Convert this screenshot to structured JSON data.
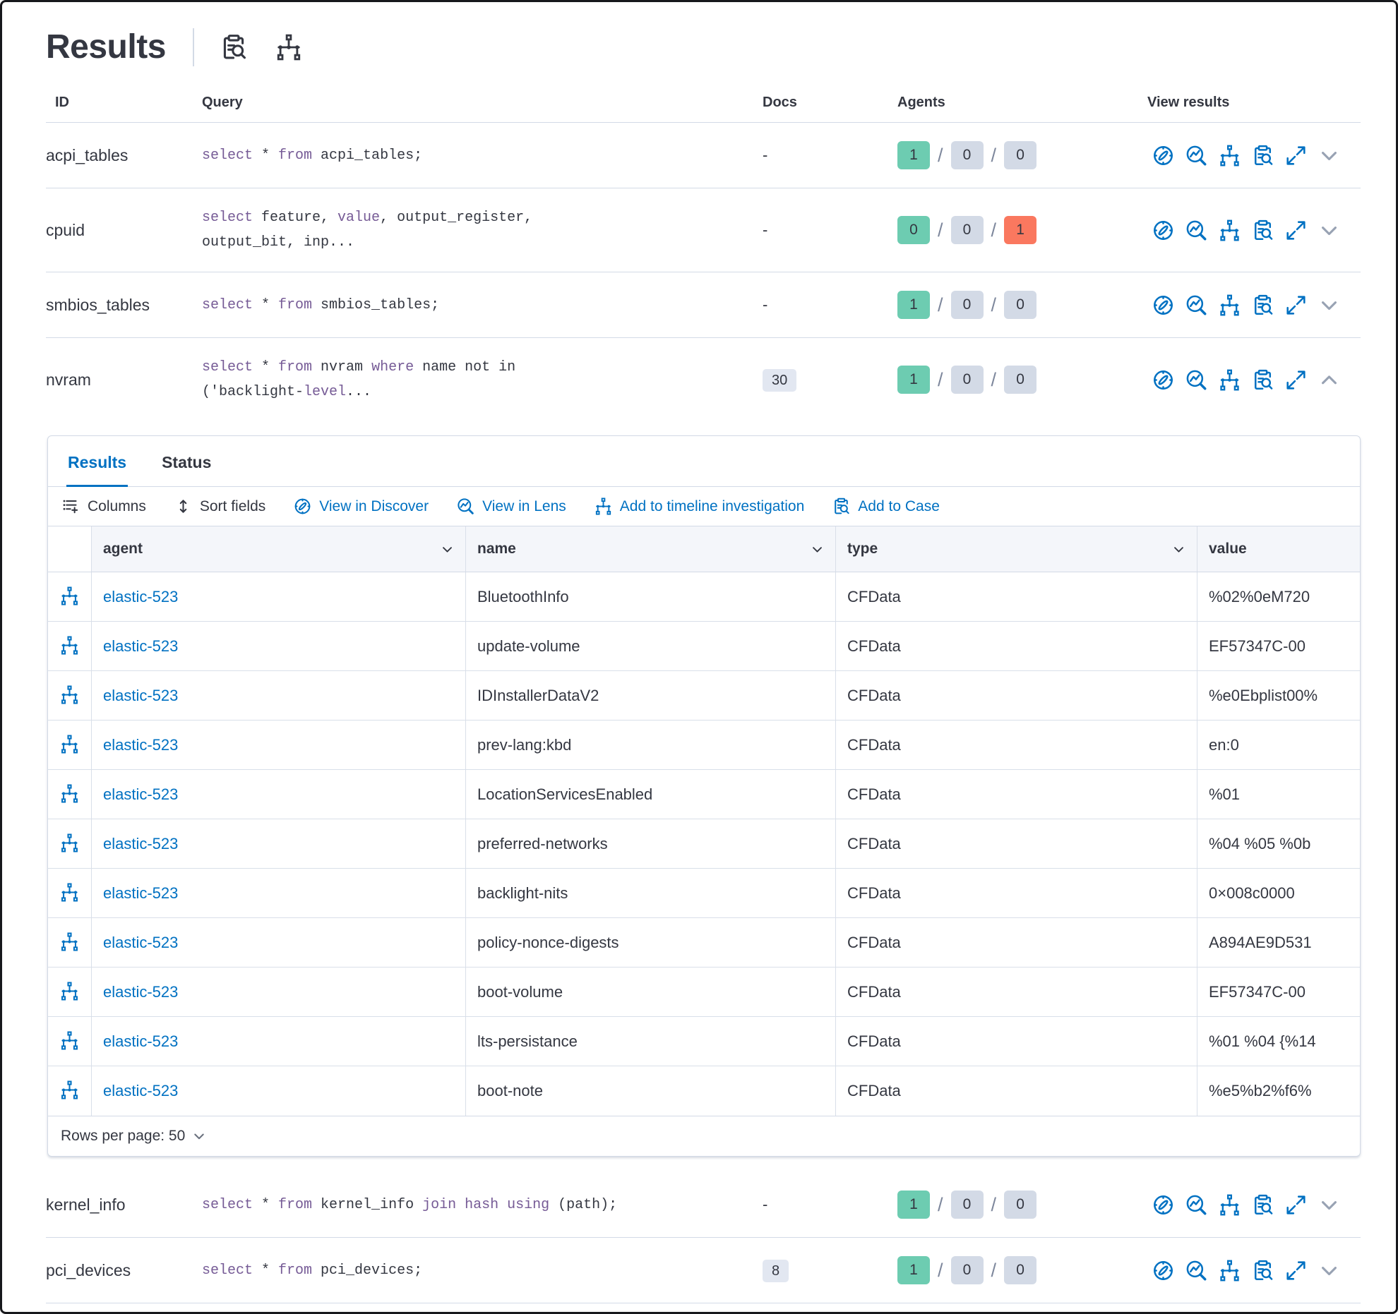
{
  "page": {
    "title": "Results"
  },
  "colors": {
    "accent": "#0071c2",
    "success_badge": "#6dccb1",
    "neutral_badge": "#d3dae6",
    "danger_badge": "#fa785f",
    "keyword": "#765b96",
    "border": "#d3dae6",
    "text": "#343741"
  },
  "results_table": {
    "columns": {
      "id": "ID",
      "query": "Query",
      "docs": "Docs",
      "agents": "Agents",
      "view": "View results"
    },
    "rows": [
      {
        "id": "acpi_tables",
        "docs": "-",
        "docs_badge": false,
        "expanded": false,
        "query": [
          [
            {
              "t": "select",
              "k": true
            },
            {
              "t": " * ",
              "k": false
            },
            {
              "t": "from",
              "k": true
            },
            {
              "t": " acpi_tables;",
              "k": false
            }
          ]
        ],
        "agents": [
          {
            "value": "1",
            "color": "green"
          },
          {
            "value": "0",
            "color": "gray"
          },
          {
            "value": "0",
            "color": "gray"
          }
        ]
      },
      {
        "id": "cpuid",
        "docs": "-",
        "docs_badge": false,
        "expanded": false,
        "query": [
          [
            {
              "t": "select",
              "k": true
            },
            {
              "t": " feature, ",
              "k": false
            },
            {
              "t": "value",
              "k": true
            },
            {
              "t": ", output_register,",
              "k": false
            }
          ],
          [
            {
              "t": "output_bit, inp...",
              "k": false
            }
          ]
        ],
        "agents": [
          {
            "value": "0",
            "color": "green"
          },
          {
            "value": "0",
            "color": "gray"
          },
          {
            "value": "1",
            "color": "red"
          }
        ]
      },
      {
        "id": "smbios_tables",
        "docs": "-",
        "docs_badge": false,
        "expanded": false,
        "query": [
          [
            {
              "t": "select",
              "k": true
            },
            {
              "t": " * ",
              "k": false
            },
            {
              "t": "from",
              "k": true
            },
            {
              "t": " smbios_tables;",
              "k": false
            }
          ]
        ],
        "agents": [
          {
            "value": "1",
            "color": "green"
          },
          {
            "value": "0",
            "color": "gray"
          },
          {
            "value": "0",
            "color": "gray"
          }
        ]
      },
      {
        "id": "nvram",
        "docs": "30",
        "docs_badge": true,
        "expanded": true,
        "query": [
          [
            {
              "t": "select",
              "k": true
            },
            {
              "t": " * ",
              "k": false
            },
            {
              "t": "from",
              "k": true
            },
            {
              "t": " nvram ",
              "k": false
            },
            {
              "t": "where",
              "k": true
            },
            {
              "t": " name not in",
              "k": false
            }
          ],
          [
            {
              "t": "('backlight-",
              "k": false
            },
            {
              "t": "level",
              "k": true
            },
            {
              "t": "...",
              "k": false
            }
          ]
        ],
        "agents": [
          {
            "value": "1",
            "color": "green"
          },
          {
            "value": "0",
            "color": "gray"
          },
          {
            "value": "0",
            "color": "gray"
          }
        ]
      },
      {
        "id": "kernel_info",
        "docs": "-",
        "docs_badge": false,
        "expanded": false,
        "query": [
          [
            {
              "t": "select",
              "k": true
            },
            {
              "t": " * ",
              "k": false
            },
            {
              "t": "from",
              "k": true
            },
            {
              "t": " kernel_info ",
              "k": false
            },
            {
              "t": "join",
              "k": true
            },
            {
              "t": " ",
              "k": false
            },
            {
              "t": "hash",
              "k": true
            },
            {
              "t": " ",
              "k": false
            },
            {
              "t": "using",
              "k": true
            },
            {
              "t": " (path);",
              "k": false
            }
          ]
        ],
        "agents": [
          {
            "value": "1",
            "color": "green"
          },
          {
            "value": "0",
            "color": "gray"
          },
          {
            "value": "0",
            "color": "gray"
          }
        ]
      },
      {
        "id": "pci_devices",
        "docs": "8",
        "docs_badge": true,
        "expanded": false,
        "query": [
          [
            {
              "t": "select",
              "k": true
            },
            {
              "t": " * ",
              "k": false
            },
            {
              "t": "from",
              "k": true
            },
            {
              "t": " pci_devices;",
              "k": false
            }
          ]
        ],
        "agents": [
          {
            "value": "1",
            "color": "green"
          },
          {
            "value": "0",
            "color": "gray"
          },
          {
            "value": "0",
            "color": "gray"
          }
        ]
      }
    ]
  },
  "panel": {
    "tabs": [
      {
        "label": "Results",
        "active": true
      },
      {
        "label": "Status",
        "active": false
      }
    ],
    "toolbar": [
      {
        "label": "Columns",
        "icon": "columns",
        "link": false
      },
      {
        "label": "Sort fields",
        "icon": "sort",
        "link": false
      },
      {
        "label": "View in Discover",
        "icon": "discover",
        "link": true
      },
      {
        "label": "View in Lens",
        "icon": "lens",
        "link": true
      },
      {
        "label": "Add to timeline investigation",
        "icon": "timeline",
        "link": true
      },
      {
        "label": "Add to Case",
        "icon": "case",
        "link": true
      }
    ],
    "grid": {
      "columns": {
        "agent": "agent",
        "name": "name",
        "type": "type",
        "value": "value"
      },
      "rows": [
        {
          "agent": "elastic-523",
          "name": "BluetoothInfo",
          "type": "CFData",
          "value": "%02%0eM720"
        },
        {
          "agent": "elastic-523",
          "name": "update-volume",
          "type": "CFData",
          "value": "EF57347C-00"
        },
        {
          "agent": "elastic-523",
          "name": "IDInstallerDataV2",
          "type": "CFData",
          "value": "%e0Ebplist00%"
        },
        {
          "agent": "elastic-523",
          "name": "prev-lang:kbd",
          "type": "CFData",
          "value": "en:0"
        },
        {
          "agent": "elastic-523",
          "name": "LocationServicesEnabled",
          "type": "CFData",
          "value": "%01"
        },
        {
          "agent": "elastic-523",
          "name": "preferred-networks",
          "type": "CFData",
          "value": "%04 %05 %0b"
        },
        {
          "agent": "elastic-523",
          "name": "backlight-nits",
          "type": "CFData",
          "value": "0×008c0000"
        },
        {
          "agent": "elastic-523",
          "name": "policy-nonce-digests",
          "type": "CFData",
          "value": "A894AE9D531"
        },
        {
          "agent": "elastic-523",
          "name": "boot-volume",
          "type": "CFData",
          "value": "EF57347C-00"
        },
        {
          "agent": "elastic-523",
          "name": "lts-persistance",
          "type": "CFData",
          "value": "%01 %04 {%14"
        },
        {
          "agent": "elastic-523",
          "name": "boot-note",
          "type": "CFData",
          "value": "%e5%b2%f6%"
        }
      ]
    },
    "footer": {
      "rows_per_page": "Rows per page: 50"
    }
  }
}
